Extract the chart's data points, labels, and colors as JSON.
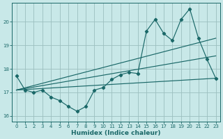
{
  "xlabel": "Humidex (Indice chaleur)",
  "background_color": "#c8e8e8",
  "grid_color": "#9bbfbf",
  "line_color": "#1a6868",
  "xlim": [
    -0.5,
    23.5
  ],
  "ylim": [
    15.75,
    20.8
  ],
  "yticks": [
    16,
    17,
    18,
    19,
    20
  ],
  "xticks": [
    0,
    1,
    2,
    3,
    4,
    5,
    6,
    7,
    8,
    9,
    10,
    11,
    12,
    13,
    14,
    15,
    16,
    17,
    18,
    19,
    20,
    21,
    22,
    23
  ],
  "main_x": [
    0,
    1,
    2,
    3,
    4,
    5,
    6,
    7,
    8,
    9,
    10,
    11,
    12,
    13,
    14,
    15,
    16,
    17,
    18,
    19,
    20,
    21,
    22,
    23
  ],
  "main_y": [
    17.7,
    17.1,
    17.0,
    17.1,
    16.8,
    16.65,
    16.4,
    16.2,
    16.4,
    17.1,
    17.2,
    17.55,
    17.75,
    17.85,
    17.8,
    19.6,
    20.1,
    19.5,
    19.2,
    20.1,
    20.55,
    19.3,
    18.4,
    17.6
  ],
  "trend1_x": [
    0,
    23
  ],
  "trend1_y": [
    17.1,
    17.6
  ],
  "trend2_x": [
    0,
    23
  ],
  "trend2_y": [
    17.1,
    18.55
  ],
  "trend3_x": [
    0,
    23
  ],
  "trend3_y": [
    17.1,
    19.3
  ]
}
